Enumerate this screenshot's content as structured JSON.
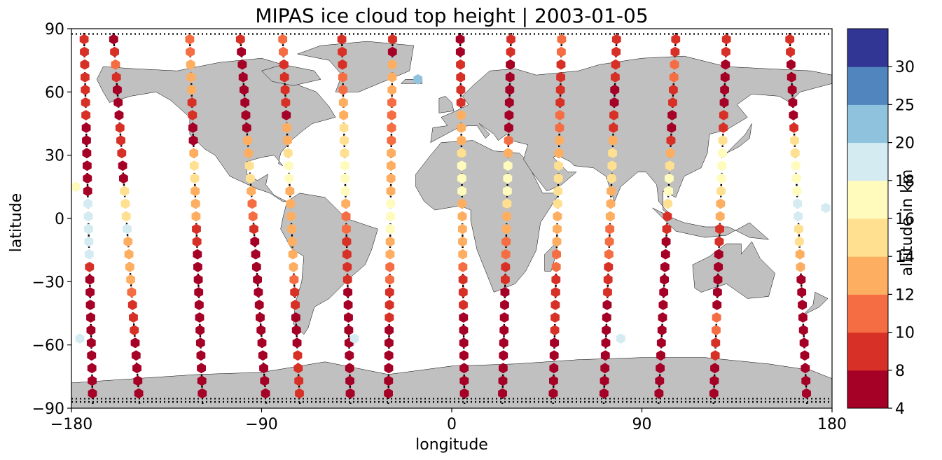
{
  "chart_data": {
    "type": "scatter",
    "title": "MIPAS ice cloud top height | 2003-01-05",
    "xlabel": "longitude",
    "ylabel": "latitude",
    "xlim": [
      -180,
      180
    ],
    "ylim": [
      -90,
      90
    ],
    "xticks": [
      -180,
      -90,
      0,
      90,
      180
    ],
    "yticks": [
      -90,
      -60,
      -30,
      0,
      30,
      60,
      90
    ],
    "xtick_labels": [
      "−180",
      "−90",
      "0",
      "90",
      "180"
    ],
    "ytick_labels": [
      "−90",
      "−60",
      "−30",
      "0",
      "30",
      "60",
      "90"
    ],
    "grid": false,
    "map_background": "world continents, equirectangular",
    "land_color": "#c0c0c0",
    "colorbar": {
      "label": "altitude in km",
      "placement": "right",
      "boundaries": [
        4,
        8,
        10,
        12,
        14,
        16,
        18,
        20,
        25,
        30
      ],
      "tick_labels": [
        "4",
        "8",
        "10",
        "12",
        "14",
        "16",
        "18",
        "20",
        "25",
        "30"
      ],
      "colors": [
        "#a50026",
        "#d73027",
        "#f46d43",
        "#fdae61",
        "#fee090",
        "#fefbbd",
        "#d4ebf2",
        "#8fc3dd",
        "#5086bd",
        "#313695"
      ]
    },
    "tracks": [
      {
        "x_north": -174,
        "x_south": -170,
        "values": [
          9,
          9,
          9,
          9,
          9,
          9,
          9,
          7,
          7,
          5,
          5,
          7,
          7,
          18,
          18,
          18,
          18,
          18,
          9,
          7,
          7,
          7,
          7,
          7,
          7,
          7,
          5,
          5,
          5
        ]
      },
      {
        "x_north": -160,
        "x_south": -148,
        "values": [
          7,
          9,
          11,
          9,
          7,
          7,
          7,
          9,
          9,
          9,
          7,
          7,
          15,
          15,
          15,
          18,
          13,
          13,
          13,
          13,
          11,
          9,
          9,
          9,
          7,
          7,
          5,
          5,
          5
        ]
      },
      {
        "x_north": -124,
        "x_south": -118,
        "values": [
          11,
          11,
          13,
          13,
          13,
          9,
          9,
          7,
          7,
          13,
          15,
          15,
          13,
          13,
          13,
          9,
          9,
          7,
          7,
          7,
          7,
          7,
          7,
          7,
          5,
          5,
          5,
          5,
          5
        ]
      },
      {
        "x_north": -100,
        "x_south": -88,
        "values": [
          9,
          7,
          7,
          7,
          5,
          5,
          5,
          7,
          13,
          13,
          15,
          15,
          13,
          11,
          11,
          9,
          7,
          7,
          7,
          5,
          5,
          5,
          5,
          5,
          5,
          5,
          5,
          5,
          5
        ]
      },
      {
        "x_north": -80,
        "x_south": -72,
        "values": [
          11,
          11,
          9,
          9,
          9,
          9,
          7,
          13,
          13,
          15,
          17,
          17,
          13,
          13,
          13,
          13,
          13,
          13,
          13,
          11,
          9,
          9,
          7,
          7,
          7,
          9,
          9,
          9,
          9
        ]
      },
      {
        "x_north": -52,
        "x_south": -48,
        "values": [
          9,
          9,
          9,
          11,
          11,
          13,
          13,
          15,
          15,
          15,
          17,
          17,
          17,
          13,
          11,
          11,
          9,
          9,
          9,
          9,
          7,
          7,
          7,
          7,
          7,
          7,
          7,
          7,
          7
        ]
      },
      {
        "x_north": -28,
        "x_south": -30,
        "values": [
          9,
          7,
          13,
          13,
          13,
          11,
          11,
          11,
          11,
          13,
          13,
          13,
          13,
          17,
          17,
          17,
          13,
          13,
          11,
          11,
          9,
          9,
          9,
          7,
          7,
          7,
          5,
          5,
          5
        ]
      },
      {
        "x_north": 4,
        "x_south": 6,
        "values": [
          7,
          7,
          9,
          9,
          9,
          9,
          13,
          13,
          13,
          15,
          17,
          17,
          17,
          13,
          13,
          13,
          13,
          13,
          11,
          9,
          9,
          9,
          7,
          7,
          7,
          7,
          5,
          5,
          5
        ]
      },
      {
        "x_north": 28,
        "x_south": 24,
        "values": [
          9,
          9,
          7,
          7,
          7,
          7,
          7,
          7,
          11,
          13,
          17,
          17,
          17,
          15,
          13,
          13,
          11,
          11,
          9,
          9,
          7,
          7,
          7,
          7,
          7,
          7,
          5,
          5,
          5
        ]
      },
      {
        "x_north": 52,
        "x_south": 48,
        "values": [
          11,
          11,
          9,
          9,
          9,
          9,
          11,
          11,
          13,
          13,
          15,
          15,
          15,
          15,
          13,
          13,
          13,
          11,
          11,
          9,
          9,
          9,
          9,
          9,
          7,
          7,
          5,
          5,
          5
        ]
      },
      {
        "x_north": 78,
        "x_south": 72,
        "values": [
          9,
          9,
          9,
          9,
          7,
          7,
          9,
          9,
          13,
          15,
          15,
          15,
          13,
          13,
          13,
          11,
          11,
          11,
          9,
          9,
          9,
          7,
          7,
          7,
          7,
          7,
          5,
          5,
          5
        ]
      },
      {
        "x_north": 106,
        "x_south": 98,
        "values": [
          9,
          9,
          11,
          11,
          9,
          9,
          7,
          7,
          9,
          13,
          15,
          17,
          17,
          15,
          9,
          9,
          7,
          7,
          7,
          7,
          7,
          7,
          7,
          7,
          7,
          7,
          5,
          5,
          5
        ]
      },
      {
        "x_north": 130,
        "x_south": 124,
        "values": [
          9,
          9,
          7,
          7,
          7,
          7,
          9,
          9,
          15,
          17,
          17,
          17,
          15,
          13,
          13,
          9,
          9,
          7,
          7,
          7,
          7,
          7,
          11,
          11,
          9,
          9,
          7,
          7,
          7
        ]
      },
      {
        "x_north": 160,
        "x_south": 168,
        "values": [
          9,
          9,
          7,
          7,
          7,
          7,
          7,
          9,
          15,
          15,
          17,
          17,
          17,
          18,
          18,
          15,
          15,
          13,
          13,
          7,
          7,
          7,
          7,
          7,
          7,
          7,
          5,
          5,
          5
        ]
      }
    ],
    "extra_points": [
      {
        "lon": -176,
        "lat": -57,
        "value": 18
      },
      {
        "lon": -46,
        "lat": -57,
        "value": 18
      },
      {
        "lon": 80,
        "lat": -57,
        "value": 18
      },
      {
        "lon": 177,
        "lat": 5,
        "value": 18
      },
      {
        "lon": -178,
        "lat": 15,
        "value": 17
      },
      {
        "lon": -16,
        "lat": 66,
        "value": 22
      }
    ],
    "tracks_note": "each track: values = cloud top altitude in km at latitudes 85 to -85 in 6-degree steps"
  }
}
